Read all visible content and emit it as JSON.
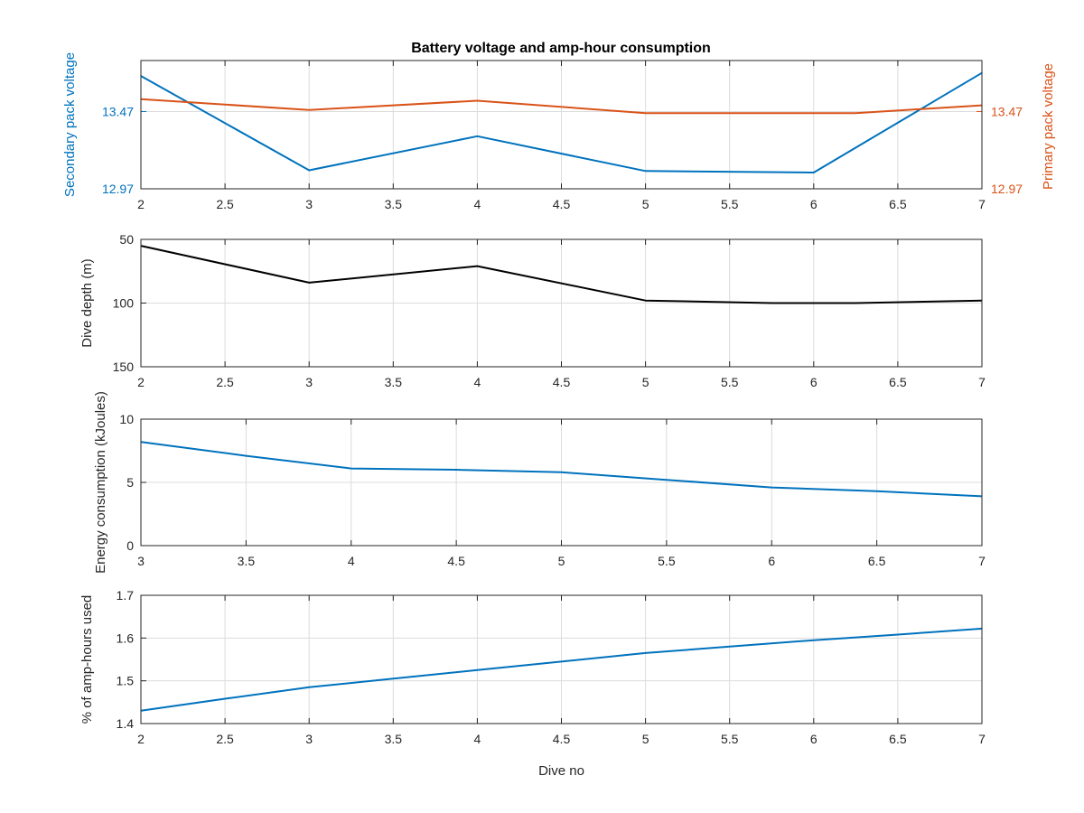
{
  "figure": {
    "title": "Battery voltage and amp-hour consumption"
  },
  "chart_data": [
    {
      "type": "line",
      "title": "Battery voltage and amp-hour consumption",
      "xlabel": "",
      "ylabel": "Secondary pack voltage",
      "ylabel_right": "Primary pack voltage",
      "xlim": [
        2,
        7
      ],
      "ylim": [
        12.97,
        13.8
      ],
      "ylim_right": [
        12.97,
        13.8
      ],
      "xticks": [
        "2",
        "2.5",
        "3",
        "3.5",
        "4",
        "4.5",
        "5",
        "5.5",
        "6",
        "6.5",
        "7"
      ],
      "yticks": [
        "12.97",
        "13.47"
      ],
      "yticks_right": [
        "12.97",
        "13.47"
      ],
      "grid": true,
      "series": [
        {
          "axis": "left",
          "color": "#0072BD",
          "x": [
            2,
            3,
            4,
            5,
            6,
            7
          ],
          "y": [
            13.7,
            13.09,
            13.31,
            13.085,
            13.075,
            13.72
          ]
        },
        {
          "axis": "right",
          "color": "#D95319",
          "x": [
            2,
            3,
            4,
            5,
            5.75,
            6.25,
            7
          ],
          "y": [
            13.55,
            13.48,
            13.54,
            13.46,
            13.46,
            13.46,
            13.51
          ]
        }
      ]
    },
    {
      "type": "line",
      "xlabel": "",
      "ylabel": "Dive depth (m)",
      "xlim": [
        2,
        7
      ],
      "ylim": [
        50,
        150
      ],
      "y_reversed": true,
      "xticks": [
        "2",
        "2.5",
        "3",
        "3.5",
        "4",
        "4.5",
        "5",
        "5.5",
        "6",
        "6.5",
        "7"
      ],
      "yticks": [
        "50",
        "100",
        "150"
      ],
      "grid": true,
      "series": [
        {
          "color": "#000000",
          "x": [
            2,
            3,
            4,
            5,
            5.75,
            6.25,
            7
          ],
          "y": [
            55,
            84,
            71,
            98,
            100,
            100,
            98
          ]
        }
      ]
    },
    {
      "type": "line",
      "xlabel": "",
      "ylabel": "Energy consumption (kJoules)",
      "xlim": [
        3,
        7
      ],
      "ylim": [
        0,
        10
      ],
      "xticks": [
        "3",
        "3.5",
        "4",
        "4.5",
        "5",
        "5.5",
        "6",
        "6.5",
        "7"
      ],
      "yticks": [
        "0",
        "5",
        "10"
      ],
      "grid": true,
      "series": [
        {
          "color": "#0072BD",
          "x": [
            3,
            3.5,
            4,
            4.5,
            5,
            5.5,
            6,
            6.5,
            7
          ],
          "y": [
            8.2,
            7.1,
            6.1,
            6.0,
            5.8,
            5.2,
            4.6,
            4.3,
            3.9
          ]
        }
      ]
    },
    {
      "type": "line",
      "xlabel": "Dive no",
      "ylabel": "% of amp-hours used",
      "xlim": [
        2,
        7
      ],
      "ylim": [
        1.4,
        1.7
      ],
      "xticks": [
        "2",
        "2.5",
        "3",
        "3.5",
        "4",
        "4.5",
        "5",
        "5.5",
        "6",
        "6.5",
        "7"
      ],
      "yticks": [
        "1.4",
        "1.5",
        "1.6",
        "1.7"
      ],
      "grid": true,
      "series": [
        {
          "color": "#0072BD",
          "x": [
            2,
            2.5,
            3,
            3.5,
            4,
            4.5,
            5,
            5.5,
            6,
            6.5,
            7
          ],
          "y": [
            1.43,
            1.458,
            1.485,
            1.505,
            1.525,
            1.545,
            1.565,
            1.58,
            1.595,
            1.608,
            1.622
          ]
        }
      ]
    }
  ]
}
